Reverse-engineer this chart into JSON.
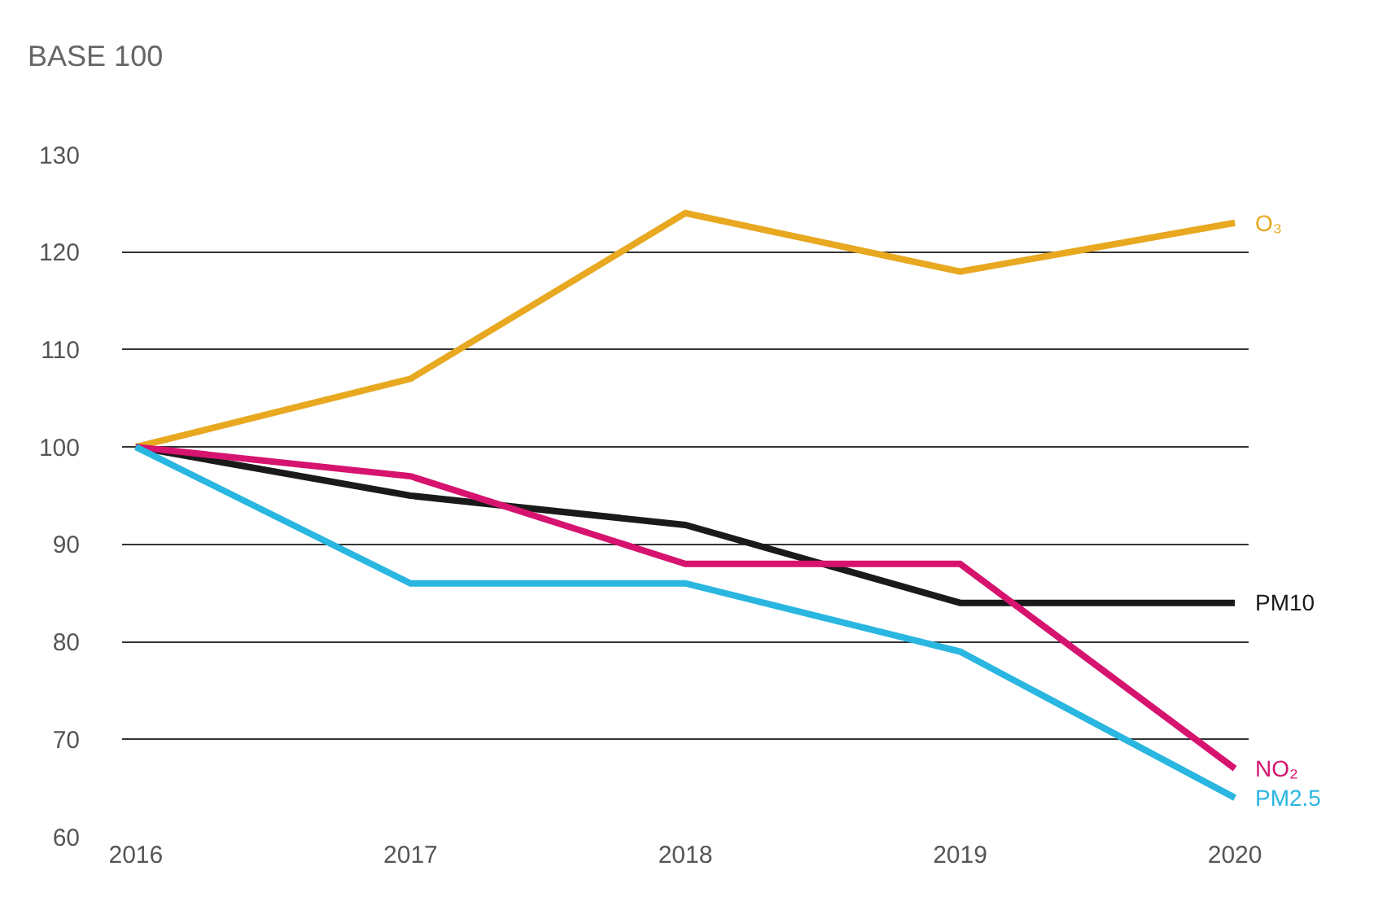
{
  "chart_data": {
    "type": "line",
    "title": "BASE 100",
    "categories": [
      "2016",
      "2017",
      "2018",
      "2019",
      "2020"
    ],
    "series": [
      {
        "name": "O₃",
        "color": "#e8a820",
        "values": [
          100,
          107,
          124,
          118,
          123
        ]
      },
      {
        "name": "PM10",
        "color": "#1a1a1a",
        "values": [
          100,
          95,
          92,
          84,
          84
        ]
      },
      {
        "name": "NO₂",
        "color": "#d6136f",
        "values": [
          100,
          97,
          88,
          88,
          67
        ]
      },
      {
        "name": "PM2.5",
        "color": "#29b6e0",
        "values": [
          100,
          86,
          86,
          79,
          64
        ]
      }
    ],
    "ylim": [
      60,
      130
    ],
    "yticks": [
      60,
      70,
      80,
      90,
      100,
      110,
      120,
      130
    ],
    "grid": "y",
    "legend": false,
    "marker": "none",
    "line_style": "solid"
  }
}
